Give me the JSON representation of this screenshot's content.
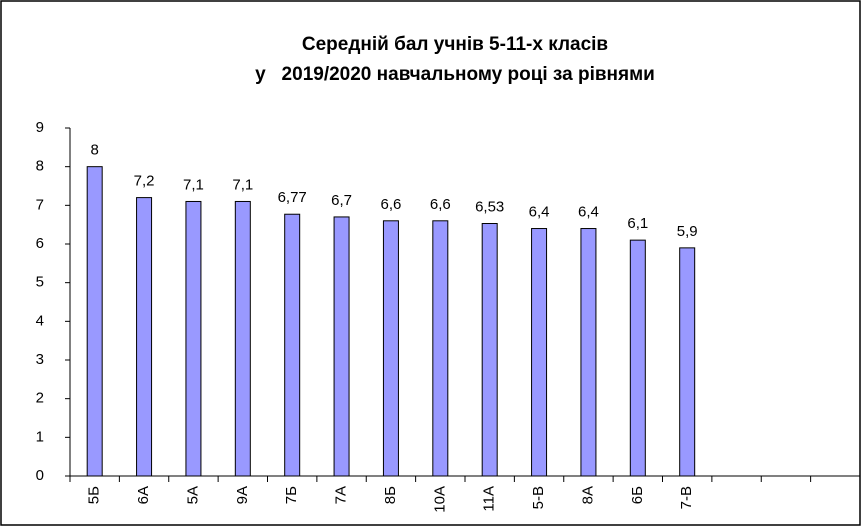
{
  "chart_data": {
    "type": "bar",
    "title": "Середній бал учнів 5-11-х класів",
    "subtitle": "у   2019/2020 навчальному році за рівнями",
    "categories": [
      "5Б",
      "6А",
      "5А",
      "9А",
      "7Б",
      "7А",
      "8Б",
      "10А",
      "11А",
      "5-В",
      "8А",
      "6Б",
      "7-В",
      null,
      null,
      null
    ],
    "values": [
      8,
      7.2,
      7.1,
      7.1,
      6.77,
      6.7,
      6.6,
      6.6,
      6.53,
      6.4,
      6.4,
      6.1,
      5.9,
      null,
      null,
      null
    ],
    "value_labels": [
      "8",
      "7,2",
      "7,1",
      "7,1",
      "6,77",
      "6,7",
      "6,6",
      "6,6",
      "6,53",
      "6,4",
      "6,4",
      "6,1",
      "5,9",
      null,
      null,
      null
    ],
    "color": "#9999ff",
    "ylim": [
      0,
      9
    ],
    "yticks": [
      0,
      1,
      2,
      3,
      4,
      5,
      6,
      7,
      8,
      9
    ],
    "grid": false
  }
}
